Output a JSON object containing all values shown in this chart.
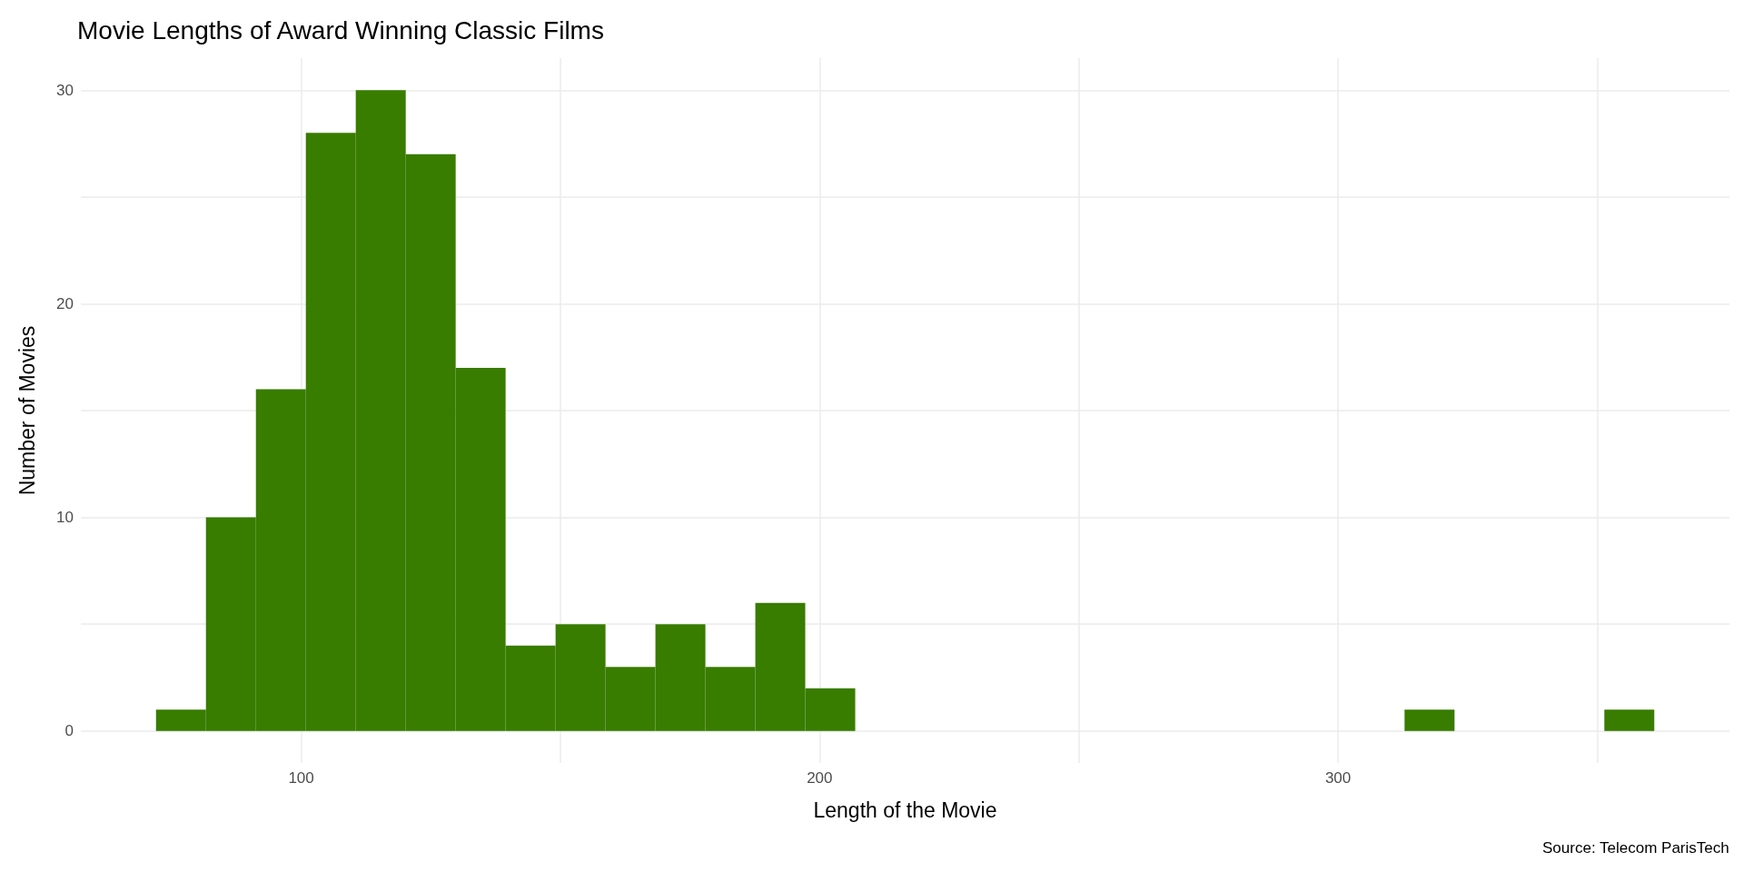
{
  "chart_data": {
    "type": "histogram",
    "title": "Movie Lengths of Award Winning Classic Films",
    "xlabel": "Length of the Movie",
    "ylabel": "Number of Movies",
    "annotations": [
      "Source: Telecom ParisTech"
    ],
    "bins": [
      72,
      81.63,
      91.27,
      100.9,
      110.53,
      120.17,
      129.8,
      139.43,
      149.07,
      158.7,
      168.33,
      177.97,
      187.6,
      197.23,
      206.87,
      216.5,
      226.13,
      235.77,
      245.4,
      255.03,
      264.67,
      274.3,
      283.93,
      293.57,
      303.2,
      312.83,
      322.47,
      332.1,
      341.73,
      351.37,
      361
    ],
    "values": [
      1,
      10,
      16,
      28,
      30,
      27,
      17,
      4,
      5,
      3,
      5,
      3,
      6,
      2,
      0,
      0,
      0,
      0,
      0,
      0,
      0,
      0,
      0,
      0,
      0,
      1,
      0,
      0,
      0,
      1
    ],
    "color": "#387c00",
    "xlim": [
      57.5,
      375.5
    ],
    "xticks": [
      {
        "value": 100,
        "label": "100"
      },
      {
        "value": 150,
        "label": null
      },
      {
        "value": 200,
        "label": "200"
      },
      {
        "value": 250,
        "label": null
      },
      {
        "value": 300,
        "label": "300"
      },
      {
        "value": 350,
        "label": null
      }
    ],
    "ylim": [
      -1.5,
      31.5
    ],
    "yticks": [
      {
        "value": 0,
        "label": "0"
      },
      {
        "value": 5,
        "label": null
      },
      {
        "value": 10,
        "label": "10"
      },
      {
        "value": 15,
        "label": null
      },
      {
        "value": 20,
        "label": "20"
      },
      {
        "value": 25,
        "label": null
      },
      {
        "value": 30,
        "label": "30"
      }
    ],
    "grid": true
  }
}
